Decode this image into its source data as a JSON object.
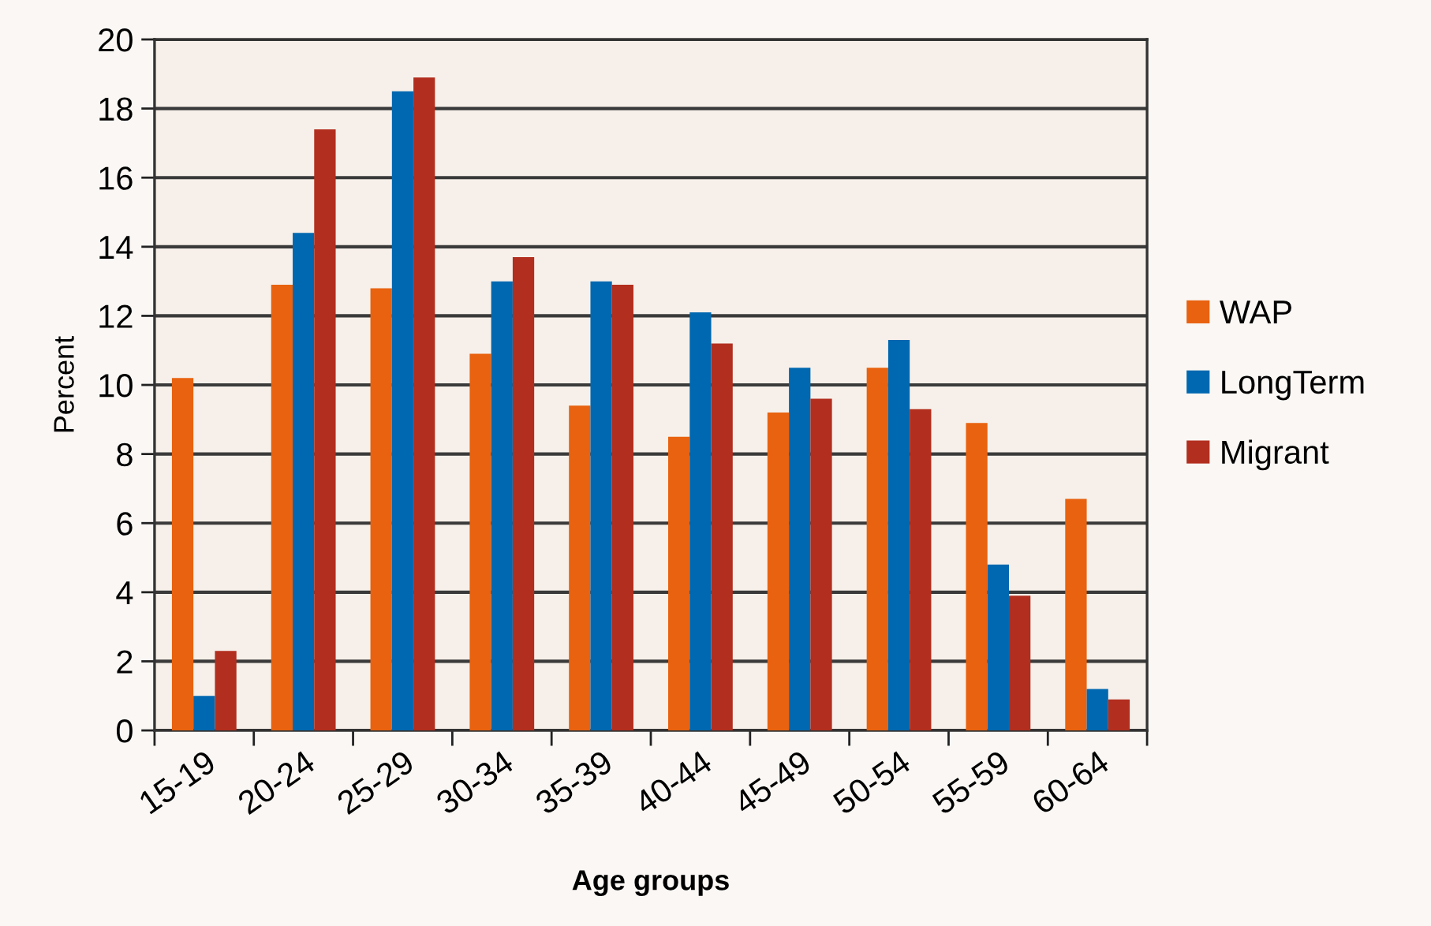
{
  "chart_data": {
    "type": "bar",
    "xlabel": "Age groups",
    "ylabel": "Percent",
    "categories": [
      "15-19",
      "20-24",
      "25-29",
      "30-34",
      "35-39",
      "40-44",
      "45-49",
      "50-54",
      "55-59",
      "60-64"
    ],
    "series": [
      {
        "name": "WAP",
        "color": "#e8620f",
        "values": [
          10.2,
          12.9,
          12.8,
          10.9,
          9.4,
          8.5,
          9.2,
          10.5,
          8.9,
          6.7
        ]
      },
      {
        "name": "LongTerm",
        "color": "#0068b0",
        "values": [
          1.0,
          14.4,
          18.5,
          13.0,
          13.0,
          12.1,
          10.5,
          11.3,
          4.8,
          1.2
        ]
      },
      {
        "name": "Migrant",
        "color": "#b22e1e",
        "values": [
          2.3,
          17.4,
          18.9,
          13.7,
          12.9,
          11.2,
          9.6,
          9.3,
          3.9,
          0.9
        ]
      }
    ],
    "ylim": [
      0,
      20
    ],
    "yticks": [
      0,
      2,
      4,
      6,
      8,
      10,
      12,
      14,
      16,
      18,
      20
    ],
    "grid": "y",
    "legend": "right"
  }
}
